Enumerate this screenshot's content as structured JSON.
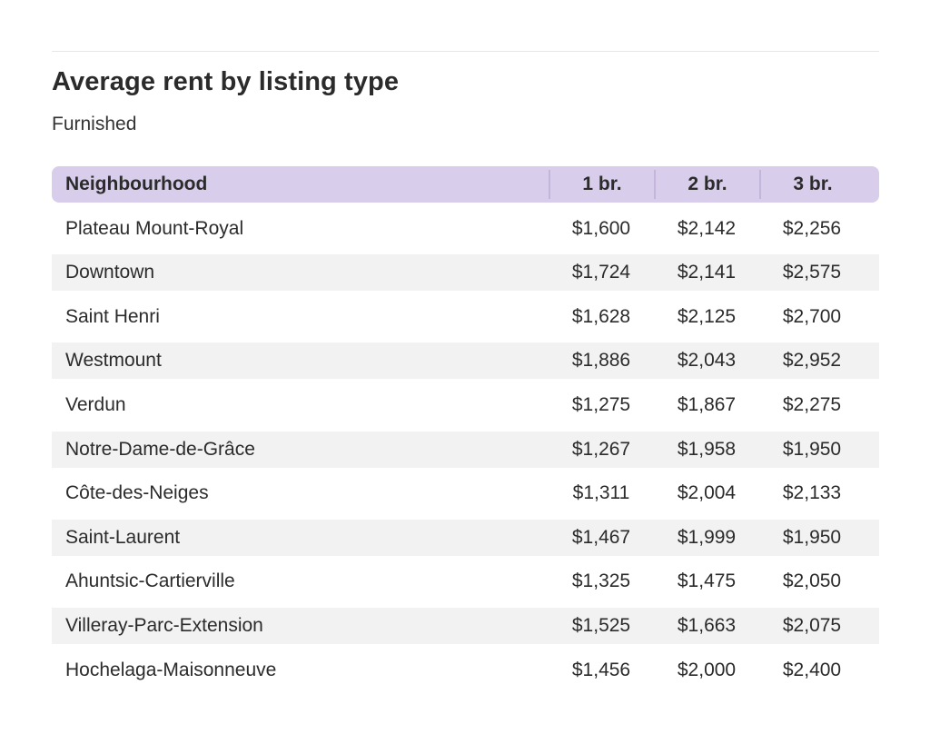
{
  "title": "Average rent by listing type",
  "subtitle": "Furnished",
  "colors": {
    "header_bg": "#d8cdeb",
    "stripe_bg": "#f2f2f2",
    "text": "#2b2b2b"
  },
  "chart_data": {
    "type": "table",
    "title": "Average rent by listing type",
    "subtitle": "Furnished",
    "columns": [
      "Neighbourhood",
      "1 br.",
      "2 br.",
      "3 br."
    ],
    "rows": [
      [
        "Plateau Mount-Royal",
        "$1,600",
        "$2,142",
        "$2,256"
      ],
      [
        "Downtown",
        "$1,724",
        "$2,141",
        "$2,575"
      ],
      [
        "Saint Henri",
        "$1,628",
        "$2,125",
        "$2,700"
      ],
      [
        "Westmount",
        "$1,886",
        "$2,043",
        "$2,952"
      ],
      [
        "Verdun",
        "$1,275",
        "$1,867",
        "$2,275"
      ],
      [
        "Notre-Dame-de-Grâce",
        "$1,267",
        "$1,958",
        "$1,950"
      ],
      [
        "Côte-des-Neiges",
        "$1,311",
        "$2,004",
        "$2,133"
      ],
      [
        "Saint-Laurent",
        "$1,467",
        "$1,999",
        "$1,950"
      ],
      [
        "Ahuntsic-Cartierville",
        "$1,325",
        "$1,475",
        "$2,050"
      ],
      [
        "Villeray-Parc-Extension",
        "$1,525",
        "$1,663",
        "$2,075"
      ],
      [
        "Hochelaga-Maisonneuve",
        "$1,456",
        "$2,000",
        "$2,400"
      ]
    ]
  }
}
